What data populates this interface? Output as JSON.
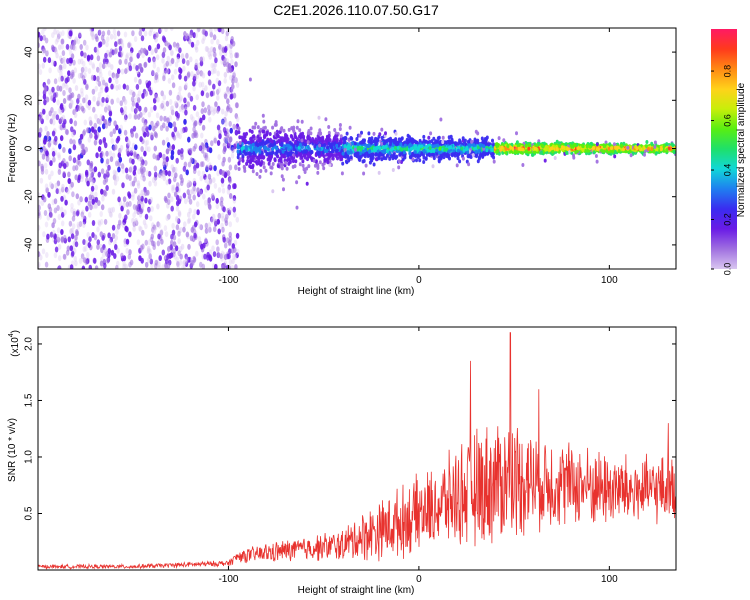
{
  "figure_title": "C2E1.2026.110.07.50.G17",
  "colorbar": {
    "label": "Normalized spectral amplitude",
    "ticks": [
      "0.0",
      "0.2",
      "0.4",
      "0.6",
      "0.8"
    ],
    "tick_values": [
      0.0,
      0.2,
      0.4,
      0.6,
      0.8
    ],
    "range": [
      0,
      0.97
    ],
    "colors": [
      "#d9c6f0",
      "#a070e0",
      "#6a1be6",
      "#3a2cf0",
      "#1f7ef0",
      "#11d7d8",
      "#1ee06a",
      "#58ee12",
      "#c8ee0a",
      "#ffd21a",
      "#ff8a14",
      "#ff3a1c",
      "#ff1a64"
    ]
  },
  "chart_data": [
    {
      "type": "heatmap",
      "title": "",
      "xlabel": "Height of straight line (km)",
      "ylabel": "Frequency (Hz)",
      "xlim": [
        -200,
        135
      ],
      "ylim": [
        -50,
        50
      ],
      "xticks": [
        -100,
        0,
        100
      ],
      "xtick_labels": [
        "-100",
        "0",
        "100"
      ],
      "yticks": [
        -40,
        -20,
        0,
        20,
        40
      ],
      "ytick_labels": [
        "-40",
        "-20",
        "0",
        "20",
        "40"
      ],
      "regions": [
        {
          "x": [
            -200,
            -95
          ],
          "freq_spread_hz": 50,
          "amplitude": [
            0.0,
            0.2
          ],
          "note": "scattered noise"
        },
        {
          "x": [
            -95,
            -40
          ],
          "freq_spread_hz": 9,
          "amplitude": [
            0.1,
            0.45
          ],
          "note": "broad band"
        },
        {
          "x": [
            -40,
            40
          ],
          "freq_spread_hz": 5,
          "amplitude": [
            0.2,
            0.6
          ],
          "note": "narrowing band"
        },
        {
          "x": [
            40,
            135
          ],
          "freq_spread_hz": 2,
          "amplitude": [
            0.5,
            0.97
          ],
          "note": "narrow line near 0 Hz"
        }
      ]
    },
    {
      "type": "line",
      "title": "",
      "xlabel": "Height of straight line (km)",
      "ylabel": "SNR (10 * v/v)",
      "multiplier_label": "(x10",
      "multiplier_exp": "4",
      "multiplier_close": ")",
      "xlim": [
        -200,
        135
      ],
      "ylim": [
        0,
        2.15
      ],
      "xticks": [
        -100,
        0,
        100
      ],
      "xtick_labels": [
        "-100",
        "0",
        "100"
      ],
      "yticks": [
        0.5,
        1.0,
        1.5,
        2.0
      ],
      "ytick_labels": [
        "0.5",
        "1.0",
        "1.5",
        "2.0"
      ],
      "color": "#e8322e",
      "envelope": {
        "x": [
          -200,
          -150,
          -100,
          -95,
          -80,
          -60,
          -40,
          -30,
          -20,
          -10,
          0,
          10,
          20,
          30,
          40,
          50,
          60,
          70,
          80,
          90,
          100,
          110,
          120,
          130,
          135
        ],
        "y": [
          0.03,
          0.03,
          0.06,
          0.12,
          0.15,
          0.19,
          0.22,
          0.3,
          0.36,
          0.42,
          0.5,
          0.56,
          0.66,
          0.72,
          0.78,
          0.82,
          0.8,
          0.78,
          0.76,
          0.74,
          0.72,
          0.7,
          0.7,
          0.72,
          0.7
        ],
        "spread": [
          0.02,
          0.02,
          0.03,
          0.06,
          0.1,
          0.12,
          0.16,
          0.25,
          0.3,
          0.35,
          0.38,
          0.4,
          0.5,
          0.6,
          0.62,
          0.6,
          0.52,
          0.46,
          0.42,
          0.4,
          0.38,
          0.36,
          0.34,
          0.34,
          0.3
        ]
      },
      "peaks": [
        {
          "x": 27,
          "y": 1.85
        },
        {
          "x": 48,
          "y": 2.1
        },
        {
          "x": 63,
          "y": 1.6
        },
        {
          "x": 131,
          "y": 1.3
        }
      ]
    }
  ]
}
